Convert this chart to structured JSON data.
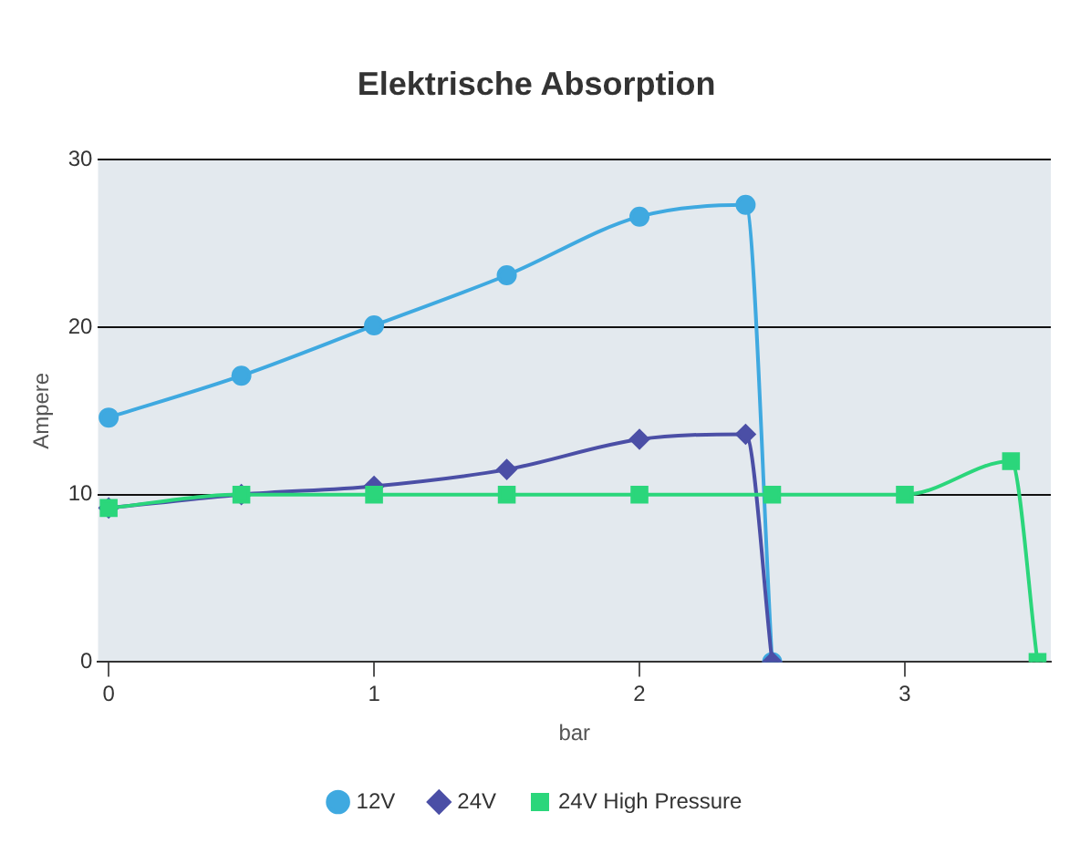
{
  "chart_data": {
    "type": "line",
    "title": "Elektrische Absorption",
    "xlabel": "bar",
    "ylabel": "Ampere",
    "xlim": [
      -0.04,
      3.55
    ],
    "xticks": [
      0,
      1,
      2,
      3
    ],
    "ylim": [
      0,
      30
    ],
    "yticks": [
      0,
      10,
      20,
      30
    ],
    "grid": "y",
    "legend": "bottom",
    "series": [
      {
        "name": "12V",
        "color": "#3fa9e0",
        "marker": "circle",
        "x": [
          0,
          0.5,
          1,
          1.5,
          2,
          2.4,
          2.5
        ],
        "values": [
          14.6,
          17.1,
          20.1,
          23.1,
          26.6,
          27.3,
          0
        ]
      },
      {
        "name": "24V",
        "color": "#4b4fa6",
        "marker": "diamond",
        "x": [
          0,
          0.5,
          1,
          1.5,
          2,
          2.4,
          2.5
        ],
        "values": [
          9.2,
          10.0,
          10.5,
          11.5,
          13.3,
          13.6,
          0
        ]
      },
      {
        "name": "24V High Pressure",
        "color": "#2bd67b",
        "marker": "square",
        "x": [
          0,
          0.5,
          1,
          1.5,
          2,
          2.5,
          3,
          3.4,
          3.5
        ],
        "values": [
          9.2,
          10,
          10,
          10,
          10,
          10,
          10,
          12,
          0
        ]
      }
    ]
  }
}
